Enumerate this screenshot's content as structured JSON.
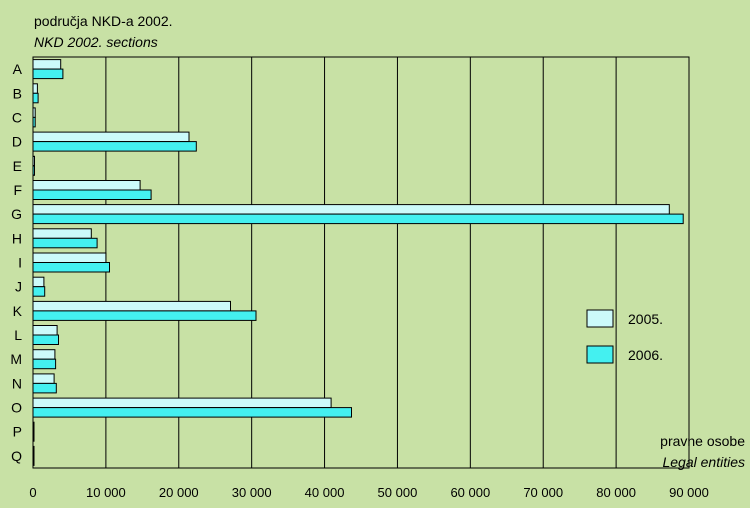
{
  "chart_data": {
    "type": "bar",
    "orientation": "horizontal",
    "title": "područja NKD-a 2002.",
    "subtitle": "NKD 2002. sections",
    "xlabel": "pravne osobe",
    "xlabel_en": "Legal entities",
    "categories": [
      "A",
      "B",
      "C",
      "D",
      "E",
      "F",
      "G",
      "H",
      "I",
      "J",
      "K",
      "L",
      "M",
      "N",
      "O",
      "P",
      "Q"
    ],
    "series": [
      {
        "name": "2005.",
        "color": "#ccfafa",
        "values": [
          3800,
          600,
          300,
          21400,
          200,
          14700,
          87300,
          8000,
          10000,
          1500,
          27100,
          3300,
          3000,
          2900,
          40900,
          50,
          50
        ]
      },
      {
        "name": "2006.",
        "color": "#44f0f0",
        "values": [
          4100,
          700,
          300,
          22400,
          200,
          16200,
          89200,
          8800,
          10500,
          1600,
          30600,
          3500,
          3100,
          3200,
          43700,
          50,
          50
        ]
      }
    ],
    "xlim": [
      0,
      90000
    ],
    "xticks": [
      0,
      10000,
      20000,
      30000,
      40000,
      50000,
      60000,
      70000,
      80000,
      90000
    ],
    "xtick_labels": [
      "0",
      "10 000",
      "20 000",
      "30 000",
      "40 000",
      "50 000",
      "60 000",
      "70 000",
      "80 000",
      "90 000"
    ],
    "grid": true,
    "legend_position": "right"
  }
}
